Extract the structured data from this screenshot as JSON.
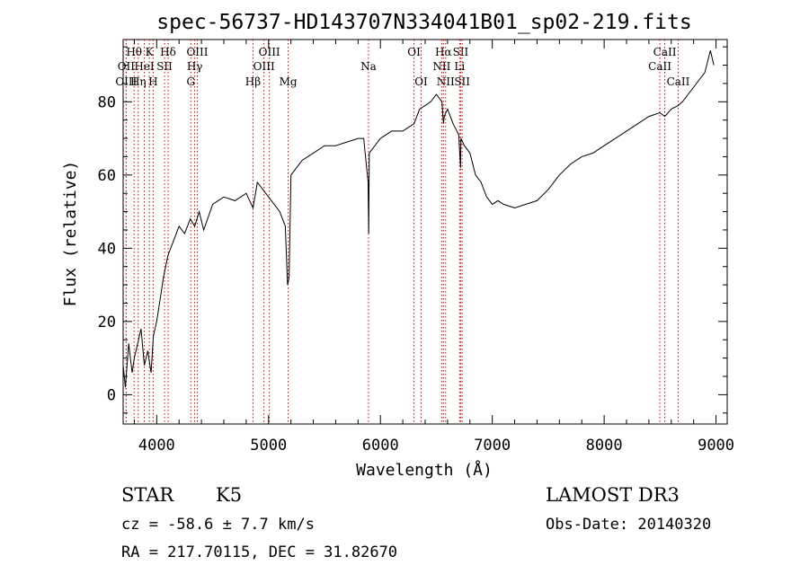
{
  "chart_data": {
    "type": "line",
    "title": "spec-56737-HD143707N334041B01_sp02-219.fits",
    "xlabel": "Wavelength (Å)",
    "ylabel": "Flux (relative)",
    "xlim": [
      3700,
      9100
    ],
    "ylim": [
      -8,
      97
    ],
    "xticks": [
      4000,
      5000,
      6000,
      7000,
      8000,
      9000
    ],
    "yticks": [
      0,
      20,
      40,
      60,
      80
    ],
    "xtick_labels": [
      "4000",
      "5000",
      "6000",
      "7000",
      "8000",
      "9000"
    ],
    "ytick_labels": [
      "0",
      "20",
      "40",
      "60",
      "80"
    ],
    "grid": false,
    "series": [
      {
        "color": "#000000",
        "x": [
          3700,
          3720,
          3750,
          3780,
          3800,
          3830,
          3860,
          3890,
          3920,
          3950,
          3970,
          4000,
          4030,
          4060,
          4100,
          4150,
          4200,
          4250,
          4300,
          4340,
          4380,
          4420,
          4500,
          4600,
          4700,
          4800,
          4861,
          4900,
          5000,
          5100,
          5150,
          5170,
          5183,
          5200,
          5250,
          5300,
          5400,
          5500,
          5600,
          5700,
          5800,
          5850,
          5890,
          5895,
          5900,
          6000,
          6100,
          6200,
          6300,
          6350,
          6400,
          6450,
          6500,
          6550,
          6563,
          6570,
          6600,
          6650,
          6700,
          6717,
          6720,
          6750,
          6800,
          6850,
          6900,
          6950,
          7000,
          7050,
          7100,
          7200,
          7300,
          7400,
          7500,
          7600,
          7700,
          7800,
          7900,
          8000,
          8100,
          8200,
          8300,
          8400,
          8498,
          8542,
          8600,
          8662,
          8700,
          8800,
          8900,
          8950,
          8980
        ],
        "y": [
          8,
          2,
          14,
          6,
          10,
          14,
          18,
          8,
          12,
          6,
          16,
          20,
          26,
          32,
          38,
          42,
          46,
          44,
          48,
          46,
          50,
          45,
          52,
          54,
          53,
          55,
          51,
          58,
          54,
          50,
          46,
          30,
          32,
          60,
          62,
          64,
          66,
          68,
          68,
          69,
          70,
          70,
          58,
          44,
          66,
          70,
          72,
          72,
          74,
          78,
          79,
          80,
          82,
          80,
          74,
          76,
          78,
          74,
          71,
          62,
          70,
          68,
          66,
          60,
          58,
          54,
          52,
          53,
          52,
          51,
          52,
          53,
          56,
          60,
          63,
          65,
          66,
          68,
          70,
          72,
          74,
          76,
          77,
          76,
          78,
          79,
          80,
          84,
          88,
          94,
          90
        ]
      }
    ],
    "spectral_lines": [
      {
        "label": "Hθ",
        "x": 3798,
        "row": 1
      },
      {
        "label": "K",
        "x": 3934,
        "row": 1
      },
      {
        "label": "Hδ",
        "x": 4102,
        "row": 1
      },
      {
        "label": "OIII",
        "x": 4363,
        "row": 1
      },
      {
        "label": "OIII",
        "x": 5007,
        "row": 1
      },
      {
        "label": "OI",
        "x": 6300,
        "row": 1
      },
      {
        "label": "Hα",
        "x": 6563,
        "row": 1
      },
      {
        "label": "SII",
        "x": 6717,
        "row": 1
      },
      {
        "label": "CaII",
        "x": 8542,
        "row": 1
      },
      {
        "label": "OII",
        "x": 3727,
        "row": 2
      },
      {
        "label": "HeI",
        "x": 3889,
        "row": 2
      },
      {
        "label": "SII",
        "x": 4070,
        "row": 2
      },
      {
        "label": "Hγ",
        "x": 4340,
        "row": 2
      },
      {
        "label": "OIII",
        "x": 4959,
        "row": 2
      },
      {
        "label": "Na",
        "x": 5893,
        "row": 2
      },
      {
        "label": "NII",
        "x": 6548,
        "row": 2
      },
      {
        "label": "Li",
        "x": 6708,
        "row": 2
      },
      {
        "label": "CaII",
        "x": 8498,
        "row": 2
      },
      {
        "label": "OIII",
        "x": 3727,
        "row": 3
      },
      {
        "label": "Hη",
        "x": 3835,
        "row": 3
      },
      {
        "label": "H",
        "x": 3968,
        "row": 3
      },
      {
        "label": "G",
        "x": 4305,
        "row": 3
      },
      {
        "label": "Hβ",
        "x": 4861,
        "row": 3
      },
      {
        "label": "Mg",
        "x": 5175,
        "row": 3
      },
      {
        "label": "OI",
        "x": 6364,
        "row": 3
      },
      {
        "label": "NII",
        "x": 6583,
        "row": 3
      },
      {
        "label": "SII",
        "x": 6731,
        "row": 3
      },
      {
        "label": "CaII",
        "x": 8662,
        "row": 3
      }
    ]
  },
  "info": {
    "class": "STAR",
    "subclass": "K5",
    "survey": "LAMOST DR3",
    "cz": "cz = -58.6 ± 7.7 km/s",
    "obsdate": "Obs-Date: 20140320",
    "radec": "RA = 217.70115, DEC =  31.82670"
  }
}
